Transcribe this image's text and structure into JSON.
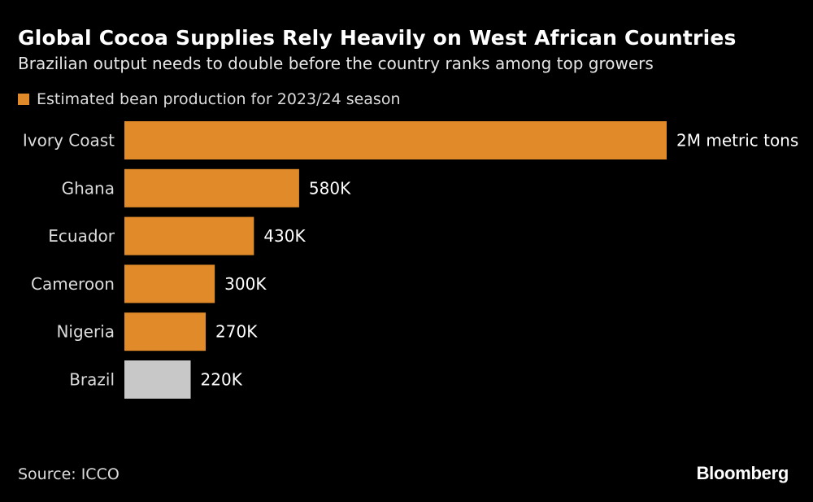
{
  "chart_data": {
    "type": "bar",
    "orientation": "horizontal",
    "title": "Global Cocoa Supplies Rely Heavily on West African Countries",
    "subtitle": "Brazilian output needs to double before the country ranks among top growers",
    "legend": {
      "label": "Estimated bean production for 2023/24 season",
      "color": "#e08a2a"
    },
    "categories": [
      "Ivory Coast",
      "Ghana",
      "Ecuador",
      "Cameroon",
      "Nigeria",
      "Brazil"
    ],
    "values": [
      1800000,
      580000,
      430000,
      300000,
      270000,
      220000
    ],
    "value_labels": [
      "2M metric tons",
      "580K",
      "430K",
      "300K",
      "270K",
      "220K"
    ],
    "bar_colors": [
      "#e08a2a",
      "#e08a2a",
      "#e08a2a",
      "#e08a2a",
      "#e08a2a",
      "#c8c8c8"
    ],
    "xlim": [
      0,
      1800000
    ],
    "xlabel": "",
    "ylabel": "",
    "grid": false,
    "source": "Source: ICCO",
    "brand": "Bloomberg"
  },
  "colors": {
    "background": "#000000",
    "accent": "#e08a2a",
    "highlight": "#c8c8c8",
    "text": "#ffffff",
    "muted_text": "#dcdcdc"
  }
}
